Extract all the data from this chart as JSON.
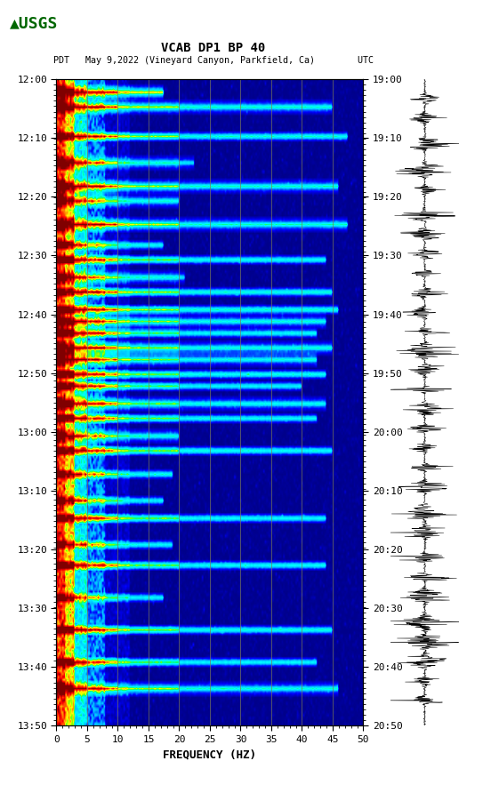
{
  "title_line1": "VCAB DP1 BP 40",
  "title_line2": "PDT   May 9,2022 (Vineyard Canyon, Parkfield, Ca)        UTC",
  "xlabel": "FREQUENCY (HZ)",
  "freq_min": 0,
  "freq_max": 50,
  "freq_ticks": [
    0,
    5,
    10,
    15,
    20,
    25,
    30,
    35,
    40,
    45,
    50
  ],
  "time_left_labels": [
    "12:00",
    "12:10",
    "12:20",
    "12:30",
    "12:40",
    "12:50",
    "13:00",
    "13:10",
    "13:20",
    "13:30",
    "13:40",
    "13:50"
  ],
  "time_right_labels": [
    "19:00",
    "19:10",
    "19:20",
    "19:30",
    "19:40",
    "19:50",
    "20:00",
    "20:10",
    "20:20",
    "20:30",
    "20:40",
    "20:50"
  ],
  "vertical_grid_freqs": [
    5,
    10,
    15,
    20,
    25,
    30,
    35,
    40,
    45
  ],
  "fig_bg": "#FFFFFF",
  "logo_color": "#006600",
  "waveform_color": "#000000",
  "n_time": 220,
  "n_freq": 200,
  "seed": 42
}
